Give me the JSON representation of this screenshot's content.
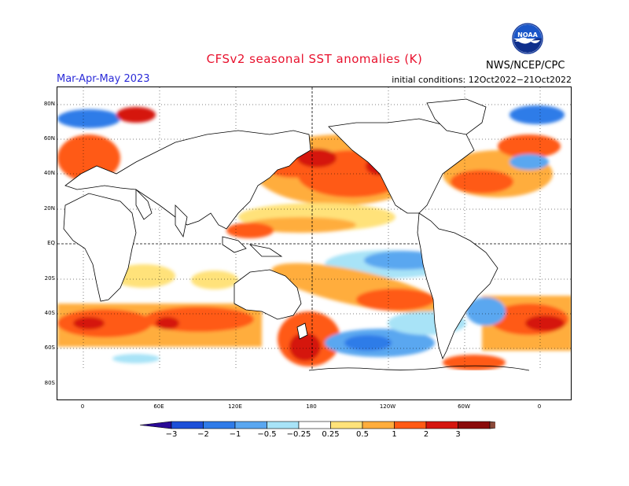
{
  "header": {
    "title": "CFSv2 seasonal SST anomalies (K)",
    "season": "Mar-Apr-May 2023",
    "initial_conditions": "initial conditions: 12Oct2022−21Oct2022",
    "agency": "NWS/NCEP/CPC",
    "logo_text": "NOAA"
  },
  "map": {
    "lat_labels": [
      "80N",
      "60N",
      "40N",
      "20N",
      "EQ",
      "20S",
      "40S",
      "60S",
      "80S"
    ],
    "lon_labels": [
      "0",
      "60E",
      "120E",
      "180",
      "120W",
      "60W",
      "0"
    ]
  },
  "colorbar": {
    "levels": [
      "−3",
      "−2",
      "−1",
      "−0.5",
      "−0.25",
      "0.25",
      "0.5",
      "1",
      "2",
      "3"
    ],
    "colors": [
      "#2a0a96",
      "#1c4fd8",
      "#2f7be8",
      "#5aa7f0",
      "#a8e3f7",
      "#ffffff",
      "#ffe27a",
      "#ffad3c",
      "#ff5a14",
      "#d5160f",
      "#8a0a0a",
      "#8b4a3a"
    ]
  }
}
